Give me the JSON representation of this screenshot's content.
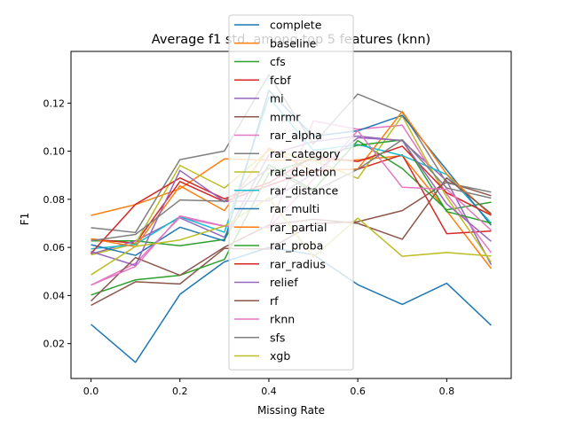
{
  "chart_data": {
    "type": "line",
    "title": "Average f1 std. among top 5 features (knn)",
    "xlabel": "Missing Rate",
    "ylabel": "F1",
    "xlim": [
      -0.045,
      0.945
    ],
    "ylim": [
      0.0055,
      0.1415
    ],
    "x": [
      0.0,
      0.1,
      0.2,
      0.3,
      0.4,
      0.5,
      0.6,
      0.7,
      0.8,
      0.9
    ],
    "xticks": [
      0.0,
      0.2,
      0.4,
      0.6,
      0.8
    ],
    "xtick_labels": [
      "0.0",
      "0.2",
      "0.4",
      "0.6",
      "0.8"
    ],
    "yticks": [
      0.02,
      0.04,
      0.06,
      0.08,
      0.1,
      0.12
    ],
    "ytick_labels": [
      "0.02",
      "0.04",
      "0.06",
      "0.08",
      "0.10",
      "0.12"
    ],
    "grid": false,
    "legend_position": "top-center",
    "series": [
      {
        "name": "complete",
        "color": "#1f77b4",
        "values": [
          0.028,
          0.0122,
          0.0405,
          0.054,
          0.06,
          0.057,
          0.0445,
          0.0363,
          0.0451,
          0.0276
        ]
      },
      {
        "name": "baseline",
        "color": "#ff7f0e",
        "values": [
          0.0733,
          0.0778,
          0.0844,
          0.0968,
          0.0963,
          0.0962,
          0.0964,
          0.0981,
          0.0752,
          0.0512
        ]
      },
      {
        "name": "cfs",
        "color": "#2ca02c",
        "values": [
          0.0627,
          0.0627,
          0.0607,
          0.0633,
          0.0944,
          0.0838,
          0.1044,
          0.0928,
          0.0756,
          0.0788
        ]
      },
      {
        "name": "fcbf",
        "color": "#d62728",
        "values": [
          0.0635,
          0.0617,
          0.0874,
          0.079,
          0.0858,
          0.0921,
          0.0925,
          0.0985,
          0.0657,
          0.0668
        ]
      },
      {
        "name": "mi",
        "color": "#9467bd",
        "values": [
          0.0572,
          0.0627,
          0.0723,
          0.0642,
          0.0985,
          0.104,
          0.1063,
          0.1043,
          0.0877,
          0.0528
        ]
      },
      {
        "name": "mrmr",
        "color": "#8c564b",
        "values": [
          0.0359,
          0.0457,
          0.0448,
          0.0596,
          0.0593,
          0.0698,
          0.0707,
          0.0753,
          0.0872,
          0.0815
        ]
      },
      {
        "name": "rar_alpha",
        "color": "#e377c2",
        "values": [
          0.0443,
          0.0534,
          0.0725,
          0.0688,
          0.0682,
          0.1126,
          0.1091,
          0.1108,
          0.0822,
          0.0578
        ]
      },
      {
        "name": "rar_category",
        "color": "#7f7f7f",
        "values": [
          0.0682,
          0.0662,
          0.0965,
          0.1001,
          0.1318,
          0.103,
          0.1238,
          0.1162,
          0.0868,
          0.083
        ]
      },
      {
        "name": "rar_deletion",
        "color": "#bcbd22",
        "values": [
          0.0569,
          0.0616,
          0.0941,
          0.0847,
          0.1004,
          0.0962,
          0.0887,
          0.1147,
          0.0808,
          0.0538
        ]
      },
      {
        "name": "rar_distance",
        "color": "#17becf",
        "values": [
          0.0594,
          0.0612,
          0.0728,
          0.0663,
          0.1225,
          0.1003,
          0.1028,
          0.0982,
          0.0903,
          0.0701
        ]
      },
      {
        "name": "rar_multi",
        "color": "#1f77b4",
        "values": [
          0.0611,
          0.0567,
          0.0684,
          0.0627,
          0.1253,
          0.1062,
          0.1085,
          0.1149,
          0.0922,
          0.0692
        ]
      },
      {
        "name": "rar_partial",
        "color": "#ff7f0e",
        "values": [
          0.0636,
          0.0603,
          0.0856,
          0.0753,
          0.1012,
          0.0917,
          0.0926,
          0.1165,
          0.0905,
          0.0733
        ]
      },
      {
        "name": "rar_proba",
        "color": "#2ca02c",
        "values": [
          0.0402,
          0.0465,
          0.0484,
          0.055,
          0.0908,
          0.0969,
          0.1025,
          0.1047,
          0.0749,
          0.0701
        ]
      },
      {
        "name": "rar_radius",
        "color": "#d62728",
        "values": [
          0.0575,
          0.0779,
          0.0889,
          0.0802,
          0.0869,
          0.0977,
          0.0957,
          0.1021,
          0.0827,
          0.0734
        ]
      },
      {
        "name": "relief",
        "color": "#9467bd",
        "values": [
          0.0583,
          0.0525,
          0.092,
          0.0791,
          0.0794,
          0.0906,
          0.1056,
          0.1045,
          0.0781,
          0.0625
        ]
      },
      {
        "name": "rf",
        "color": "#8c564b",
        "values": [
          0.0377,
          0.0558,
          0.0484,
          0.0601,
          0.0693,
          0.0717,
          0.07,
          0.0634,
          0.0889,
          0.074
        ]
      },
      {
        "name": "rknn",
        "color": "#e377c2",
        "values": [
          0.0443,
          0.0521,
          0.0731,
          0.0689,
          0.0681,
          0.0883,
          0.1085,
          0.085,
          0.0842,
          0.0671
        ]
      },
      {
        "name": "sfs",
        "color": "#7f7f7f",
        "values": [
          0.0628,
          0.0654,
          0.0797,
          0.0792,
          0.0929,
          0.0832,
          0.0925,
          0.1048,
          0.0847,
          0.0805
        ]
      },
      {
        "name": "xgb",
        "color": "#bcbd22",
        "values": [
          0.0486,
          0.0604,
          0.0631,
          0.0689,
          0.0806,
          0.056,
          0.0722,
          0.0563,
          0.0579,
          0.0564
        ]
      }
    ]
  }
}
